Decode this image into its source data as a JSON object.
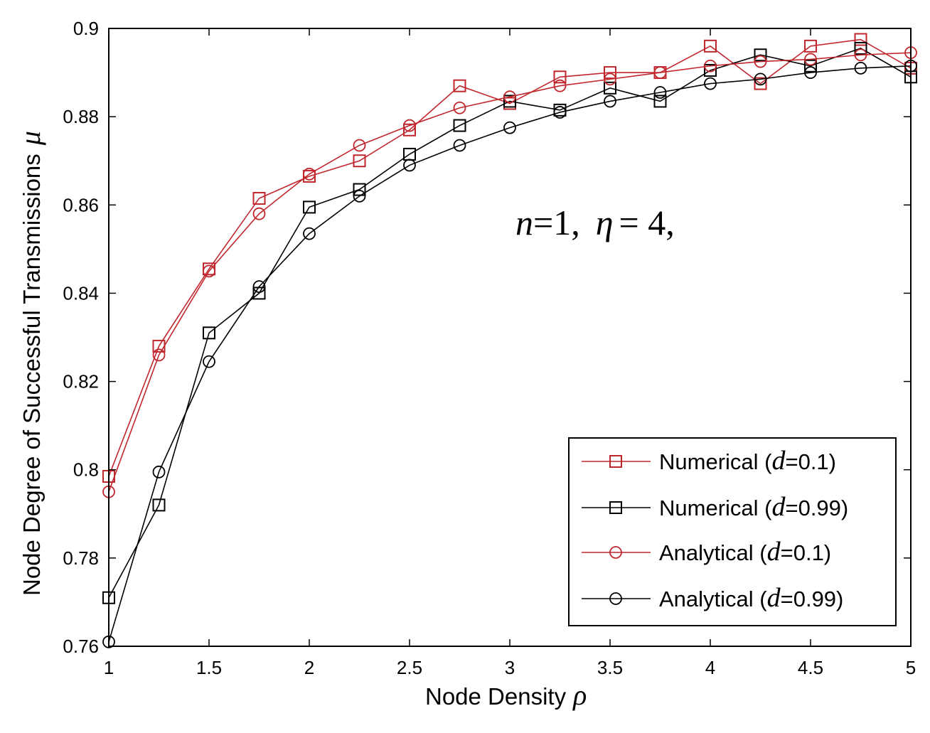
{
  "chart_data": {
    "type": "line",
    "xlabel": "Node Density",
    "xlabel_symbol": "ρ",
    "ylabel": "Node Degree of Successful Transmissions",
    "ylabel_symbol": "μ",
    "xlim": [
      1,
      5
    ],
    "ylim": [
      0.76,
      0.9
    ],
    "xticks": [
      1,
      1.5,
      2,
      2.5,
      3,
      3.5,
      4,
      4.5,
      5
    ],
    "xtick_labels": [
      "1",
      "1.5",
      "2",
      "2.5",
      "3",
      "3.5",
      "4",
      "4.5",
      "5"
    ],
    "yticks": [
      0.76,
      0.78,
      0.8,
      0.82,
      0.84,
      0.86,
      0.88,
      0.9
    ],
    "ytick_labels": [
      "0.76",
      "0.78",
      "0.8",
      "0.82",
      "0.84",
      "0.86",
      "0.88",
      "0.9"
    ],
    "grid": false,
    "legend_position": "bottom-right",
    "x": [
      1,
      1.25,
      1.5,
      1.75,
      2,
      2.25,
      2.5,
      2.75,
      3,
      3.25,
      3.5,
      3.75,
      4,
      4.25,
      4.5,
      4.75,
      5
    ],
    "series": [
      {
        "legend_prefix": "Numerical (",
        "legend_var": "d",
        "legend_suffix": "=0.1)",
        "color": "#c0272d",
        "marker": "square",
        "values": [
          0.7985,
          0.828,
          0.8455,
          0.8615,
          0.8665,
          0.87,
          0.877,
          0.887,
          0.883,
          0.889,
          0.89,
          0.89,
          0.896,
          0.8875,
          0.896,
          0.8975,
          0.891
        ]
      },
      {
        "legend_prefix": "Numerical (",
        "legend_var": "d",
        "legend_suffix": "=0.99)",
        "color": "#000000",
        "marker": "square",
        "values": [
          0.771,
          0.792,
          0.831,
          0.84,
          0.8595,
          0.8635,
          0.8715,
          0.878,
          0.8835,
          0.8815,
          0.8865,
          0.8835,
          0.8905,
          0.894,
          0.8915,
          0.8955,
          0.889
        ]
      },
      {
        "legend_prefix": "Analytical (",
        "legend_var": "d",
        "legend_suffix": "=0.1)",
        "color": "#c0272d",
        "marker": "circle",
        "values": [
          0.795,
          0.826,
          0.845,
          0.858,
          0.867,
          0.8735,
          0.878,
          0.882,
          0.8845,
          0.887,
          0.8885,
          0.89,
          0.8915,
          0.8925,
          0.893,
          0.894,
          0.8945
        ]
      },
      {
        "legend_prefix": "Analytical (",
        "legend_var": "d",
        "legend_suffix": "=0.99)",
        "color": "#000000",
        "marker": "circle",
        "values": [
          0.761,
          0.7995,
          0.8245,
          0.8415,
          0.8535,
          0.862,
          0.869,
          0.8735,
          0.8775,
          0.881,
          0.8835,
          0.8855,
          0.8875,
          0.8885,
          0.89,
          0.891,
          0.8915
        ]
      }
    ],
    "annotation": {
      "var1": "n",
      "eq1": "=1,",
      "var2": "η",
      "eq2": "= 4,"
    }
  }
}
